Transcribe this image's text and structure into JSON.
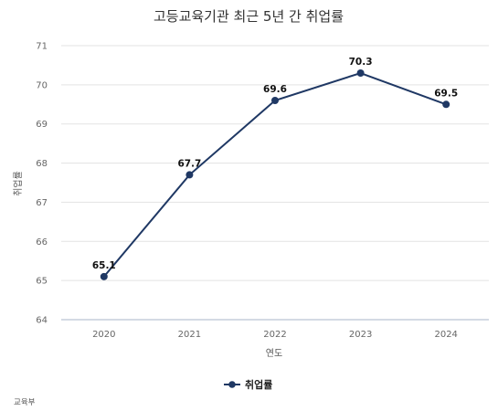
{
  "chart_data": {
    "type": "line",
    "title": "고등교육기관 최근 5년 간 취업률",
    "xlabel": "연도",
    "ylabel": "취업률",
    "categories": [
      "2020",
      "2021",
      "2022",
      "2023",
      "2024"
    ],
    "series": [
      {
        "name": "취업률",
        "values": [
          65.1,
          67.7,
          69.6,
          70.3,
          69.5
        ],
        "color": "#1f3864"
      }
    ],
    "data_labels": [
      "65.1",
      "67.7",
      "69.6",
      "70.3",
      "69.5"
    ],
    "ylim": [
      64,
      71
    ],
    "yticks": [
      "64",
      "65",
      "66",
      "67",
      "68",
      "69",
      "70",
      "71"
    ],
    "grid": true,
    "legend_position": "bottom"
  },
  "source": "교육부"
}
